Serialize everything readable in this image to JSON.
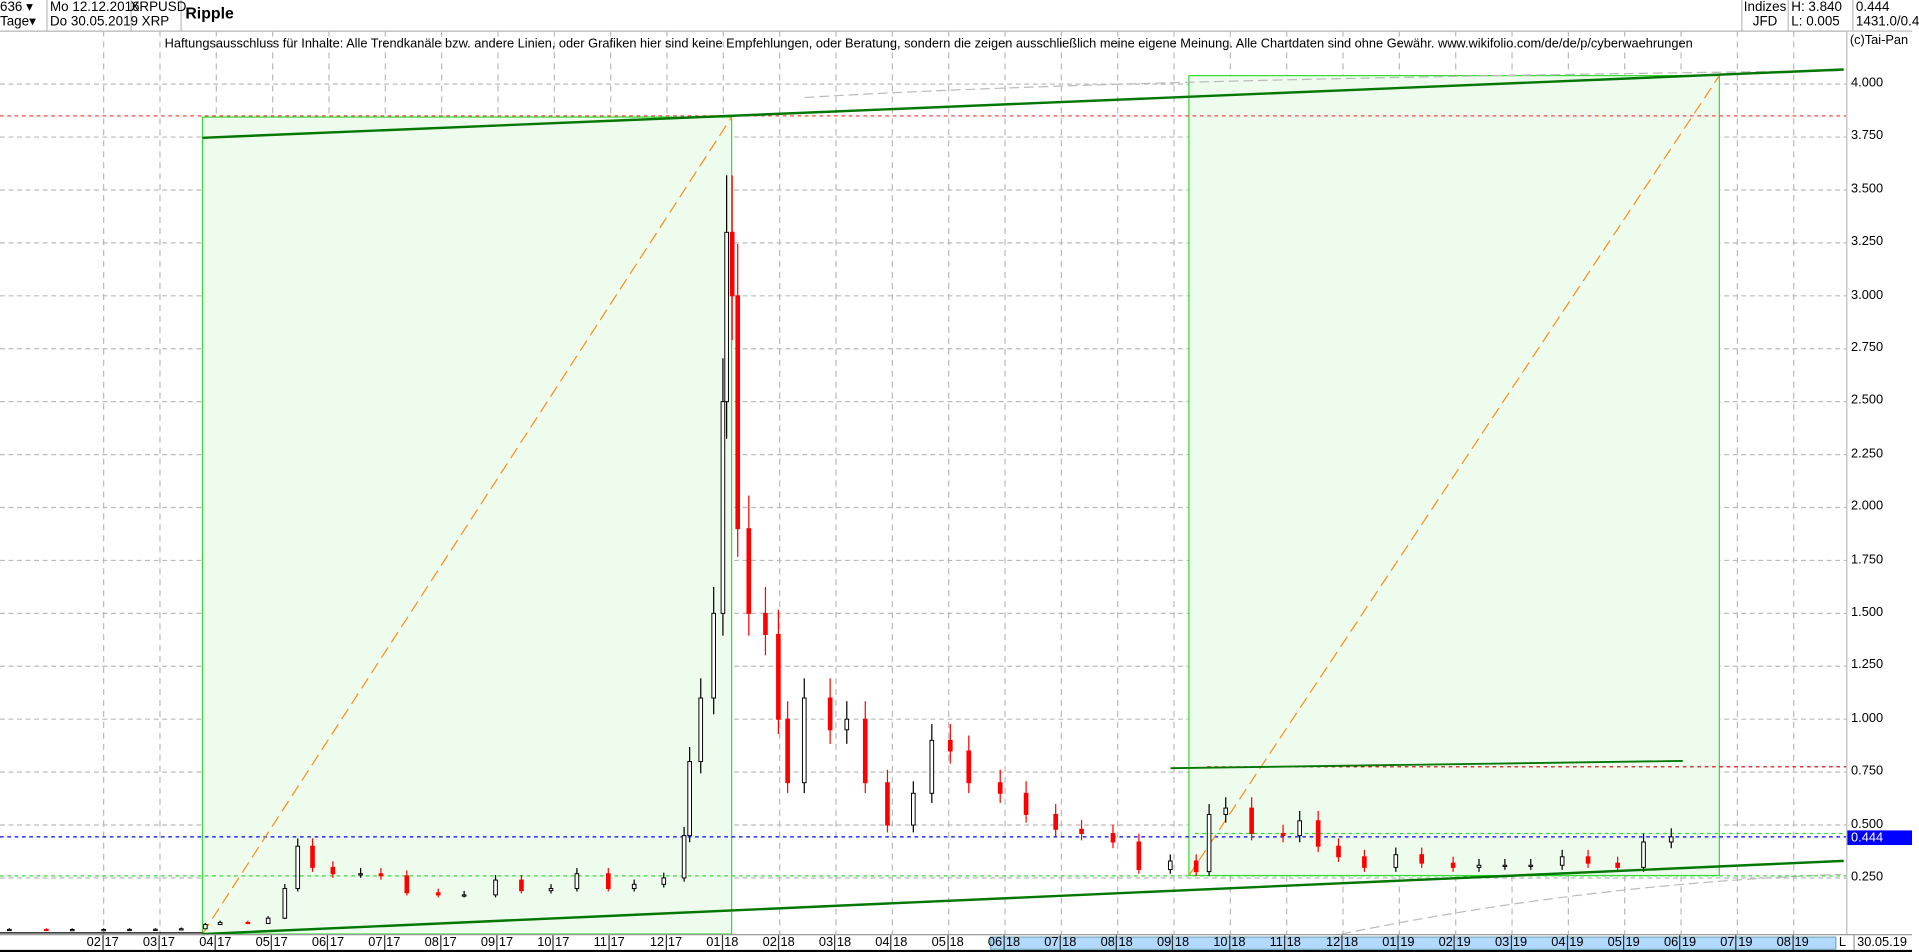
{
  "header": {
    "bars": "636",
    "period": "Tage",
    "date_from": "Mo 12.12.2016",
    "date_to": "Do 30.05.2019",
    "symbol": "XRPUSD",
    "symbol_short": "XRP",
    "title": "Ripple",
    "exchange_label": "Indizes",
    "exchange": "JFD",
    "high": "H: 3.840",
    "low": "L: 0.005",
    "last": "0.444",
    "info": "1431.0/0.4"
  },
  "disclaimer": "Haftungsausschluss für Inhalte: Alle Trendkanäle bzw. andere Linien, oder Grafiken hier sind keine Empfehlungen, oder Beratung, sondern die zeigen ausschließlich meine eigene Meinung. Alle Chartdaten sind ohne Gewähr.  www.wikifolio.com/de/de/p/cyberwaehrungen",
  "copyright": "(c)Tai-Pan",
  "axis_end_marker": "L",
  "axis_end_date": "30.05.19",
  "colors": {
    "up": "#000000",
    "down": "#ff0000",
    "current": "#0000ff",
    "box": "#33dd33",
    "trend": "#007700",
    "diag": "#ff8c1a"
  },
  "chart_data": {
    "type": "candlestick",
    "title": "Ripple",
    "ylim": [
      0,
      4.2
    ],
    "grid": true,
    "current_price": 0.444,
    "yticks": [
      "4.000",
      "3.750",
      "3.500",
      "3.250",
      "3.000",
      "2.750",
      "2.500",
      "2.250",
      "2.000",
      "1.750",
      "1.500",
      "1.250",
      "1.000",
      "0.750",
      "0.500",
      "0.250"
    ],
    "xticks": [
      "02.17",
      "03.17",
      "04.17",
      "05.17",
      "06.17",
      "07.17",
      "08.17",
      "09.17",
      "10.17",
      "11.17",
      "12.17",
      "01.18",
      "02.18",
      "03.18",
      "04.18",
      "05.18",
      "06.18",
      "07.18",
      "08.18",
      "09.18",
      "10.18",
      "11.18",
      "12.18",
      "01.19",
      "02.19",
      "03.19",
      "04.19",
      "05.19",
      "06.19",
      "07.19",
      "08.19"
    ],
    "xtick_labels": [
      [
        "02",
        "17"
      ],
      [
        "03",
        "17"
      ],
      [
        "04",
        "17"
      ],
      [
        "05",
        "17"
      ],
      [
        "06",
        "17"
      ],
      [
        "07",
        "17"
      ],
      [
        "08",
        "17"
      ],
      [
        "09",
        "17"
      ],
      [
        "10",
        "17"
      ],
      [
        "11",
        "17"
      ],
      [
        "12",
        "17"
      ],
      [
        "01",
        "18"
      ],
      [
        "02",
        "18"
      ],
      [
        "03",
        "18"
      ],
      [
        "04",
        "18"
      ],
      [
        "05",
        "18"
      ],
      [
        "06",
        "18"
      ],
      [
        "07",
        "18"
      ],
      [
        "08",
        "18"
      ],
      [
        "09",
        "18"
      ],
      [
        "10",
        "18"
      ],
      [
        "11",
        "18"
      ],
      [
        "12",
        "18"
      ],
      [
        "01",
        "19"
      ],
      [
        "02",
        "19"
      ],
      [
        "03",
        "19"
      ],
      [
        "04",
        "19"
      ],
      [
        "05",
        "19"
      ],
      [
        "06",
        "19"
      ],
      [
        "07",
        "19"
      ],
      [
        "08",
        "19"
      ]
    ],
    "series": [
      [
        "2016-12-12",
        0.007
      ],
      [
        "2017-01-01",
        0.0065
      ],
      [
        "2017-01-15",
        0.0065
      ],
      [
        "2017-02-01",
        0.0065
      ],
      [
        "2017-02-15",
        0.007
      ],
      [
        "2017-03-01",
        0.0075
      ],
      [
        "2017-03-15",
        0.01
      ],
      [
        "2017-03-28",
        0.03
      ],
      [
        "2017-04-05",
        0.04
      ],
      [
        "2017-04-20",
        0.035
      ],
      [
        "2017-05-01",
        0.06
      ],
      [
        "2017-05-10",
        0.2
      ],
      [
        "2017-05-17",
        0.4
      ],
      [
        "2017-05-25",
        0.3
      ],
      [
        "2017-06-05",
        0.27
      ],
      [
        "2017-06-20",
        0.27
      ],
      [
        "2017-07-01",
        0.26
      ],
      [
        "2017-07-15",
        0.18
      ],
      [
        "2017-08-01",
        0.17
      ],
      [
        "2017-08-15",
        0.17
      ],
      [
        "2017-09-01",
        0.24
      ],
      [
        "2017-09-15",
        0.19
      ],
      [
        "2017-10-01",
        0.2
      ],
      [
        "2017-10-15",
        0.27
      ],
      [
        "2017-11-01",
        0.2
      ],
      [
        "2017-11-15",
        0.22
      ],
      [
        "2017-12-01",
        0.25
      ],
      [
        "2017-12-12",
        0.45
      ],
      [
        "2017-12-15",
        0.8
      ],
      [
        "2017-12-21",
        1.1
      ],
      [
        "2017-12-28",
        1.5
      ],
      [
        "2018-01-02",
        2.5
      ],
      [
        "2018-01-04",
        3.3
      ],
      [
        "2018-01-07",
        3.0
      ],
      [
        "2018-01-10",
        1.9
      ],
      [
        "2018-01-16",
        1.5
      ],
      [
        "2018-01-25",
        1.4
      ],
      [
        "2018-02-01",
        1.0
      ],
      [
        "2018-02-06",
        0.7
      ],
      [
        "2018-02-15",
        1.1
      ],
      [
        "2018-03-01",
        0.95
      ],
      [
        "2018-03-10",
        1.0
      ],
      [
        "2018-03-20",
        0.7
      ],
      [
        "2018-04-01",
        0.5
      ],
      [
        "2018-04-15",
        0.65
      ],
      [
        "2018-04-25",
        0.9
      ],
      [
        "2018-05-05",
        0.85
      ],
      [
        "2018-05-15",
        0.7
      ],
      [
        "2018-06-01",
        0.65
      ],
      [
        "2018-06-15",
        0.55
      ],
      [
        "2018-07-01",
        0.48
      ],
      [
        "2018-07-15",
        0.46
      ],
      [
        "2018-08-01",
        0.42
      ],
      [
        "2018-08-15",
        0.29
      ],
      [
        "2018-09-01",
        0.33
      ],
      [
        "2018-09-15",
        0.28
      ],
      [
        "2018-09-22",
        0.55
      ],
      [
        "2018-10-01",
        0.58
      ],
      [
        "2018-10-15",
        0.46
      ],
      [
        "2018-11-01",
        0.45
      ],
      [
        "2018-11-10",
        0.52
      ],
      [
        "2018-11-20",
        0.4
      ],
      [
        "2018-12-01",
        0.35
      ],
      [
        "2018-12-15",
        0.3
      ],
      [
        "2019-01-01",
        0.36
      ],
      [
        "2019-01-15",
        0.32
      ],
      [
        "2019-02-01",
        0.3
      ],
      [
        "2019-02-15",
        0.31
      ],
      [
        "2019-03-01",
        0.31
      ],
      [
        "2019-03-15",
        0.31
      ],
      [
        "2019-04-01",
        0.35
      ],
      [
        "2019-04-15",
        0.32
      ],
      [
        "2019-05-01",
        0.3
      ],
      [
        "2019-05-15",
        0.42
      ],
      [
        "2019-05-30",
        0.444
      ]
    ]
  }
}
